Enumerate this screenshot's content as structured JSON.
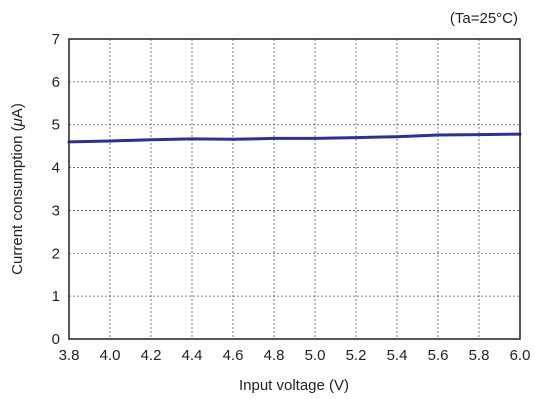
{
  "chart_data": {
    "type": "line",
    "annotation": "(Ta=25°C)",
    "xlabel": "Input voltage (V)",
    "ylabel_prefix": "Current consumption (",
    "ylabel_unit_symbol": "μ",
    "ylabel_suffix": "A)",
    "xlim": [
      3.8,
      6.0
    ],
    "ylim": [
      0,
      7
    ],
    "x_ticks": [
      "3.8",
      "4.0",
      "4.2",
      "4.4",
      "4.6",
      "4.8",
      "5.0",
      "5.2",
      "5.4",
      "5.6",
      "5.8",
      "6.0"
    ],
    "y_ticks": [
      "0",
      "1",
      "2",
      "3",
      "4",
      "5",
      "6",
      "7"
    ],
    "grid": true,
    "line_color": "#2e3192",
    "series": [
      {
        "x": [
          3.8,
          4.0,
          4.2,
          4.4,
          4.6,
          4.8,
          5.0,
          5.2,
          5.4,
          5.6,
          5.8,
          6.0
        ],
        "values": [
          4.6,
          4.62,
          4.65,
          4.67,
          4.66,
          4.68,
          4.68,
          4.7,
          4.72,
          4.76,
          4.77,
          4.78
        ]
      }
    ]
  }
}
